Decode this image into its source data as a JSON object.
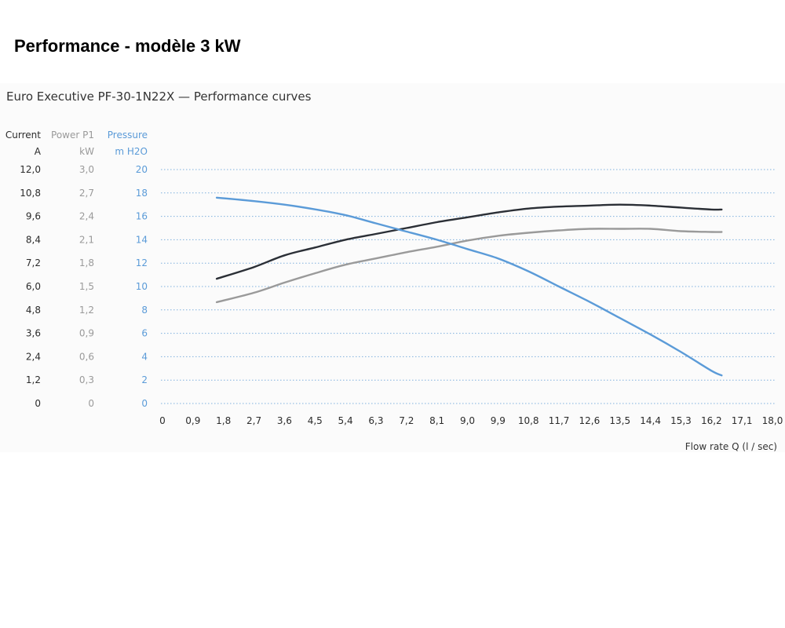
{
  "page": {
    "heading": "Performance - modèle 3 kW"
  },
  "colors": {
    "current": "#2b2f36",
    "power": "#9a9a9a",
    "pressure": "#5b9bd8",
    "grid": "#7fb0dd",
    "axis_text": "#2b2b2b"
  },
  "chart_data": {
    "type": "line",
    "title": "Euro Executive PF-30-1N22X — Performance curves",
    "xlabel": "Flow rate Q  (l / sec)",
    "xlim": [
      0,
      18.0
    ],
    "x_ticks": [
      "0",
      "0,9",
      "1,8",
      "2,7",
      "3,6",
      "4,5",
      "5,4",
      "6,3",
      "7,2",
      "8,1",
      "9,0",
      "9,9",
      "10,8",
      "11,7",
      "12,6",
      "13,5",
      "14,4",
      "15,3",
      "16,2",
      "17,1",
      "18,0"
    ],
    "y_axes": [
      {
        "name": "Current",
        "unit": "A",
        "range": [
          0,
          12.0
        ],
        "ticks": [
          "0",
          "1,2",
          "2,4",
          "3,6",
          "4,8",
          "6,0",
          "7,2",
          "8,4",
          "9,6",
          "10,8",
          "12,0"
        ]
      },
      {
        "name": "Power P1",
        "unit": "kW",
        "range": [
          0,
          3.0
        ],
        "ticks": [
          "0",
          "0,3",
          "0,6",
          "0,9",
          "1,2",
          "1,5",
          "1,8",
          "2,1",
          "2,4",
          "2,7",
          "3,0"
        ]
      },
      {
        "name": "Pressure",
        "unit": "m H2O",
        "range": [
          0,
          20
        ],
        "ticks": [
          "0",
          "2",
          "4",
          "6",
          "8",
          "10",
          "12",
          "14",
          "16",
          "18",
          "20"
        ]
      }
    ],
    "grid": true,
    "series": [
      {
        "key": "current",
        "axis": "Current",
        "x": [
          1.6,
          2.7,
          3.6,
          4.5,
          5.4,
          6.3,
          7.2,
          8.1,
          9.0,
          9.9,
          10.8,
          11.7,
          12.6,
          13.5,
          14.4,
          15.3,
          16.2,
          16.5
        ],
        "y": [
          6.4,
          7.0,
          7.6,
          8.0,
          8.4,
          8.7,
          9.0,
          9.3,
          9.55,
          9.8,
          10.0,
          10.1,
          10.15,
          10.2,
          10.15,
          10.05,
          9.95,
          9.95
        ]
      },
      {
        "key": "power",
        "axis": "Power P1",
        "x": [
          1.6,
          2.7,
          3.6,
          4.5,
          5.4,
          6.3,
          7.2,
          8.1,
          9.0,
          9.9,
          10.8,
          11.7,
          12.6,
          13.5,
          14.4,
          15.3,
          16.2,
          16.5
        ],
        "y": [
          1.3,
          1.42,
          1.55,
          1.67,
          1.78,
          1.86,
          1.94,
          2.01,
          2.09,
          2.15,
          2.19,
          2.22,
          2.24,
          2.24,
          2.24,
          2.21,
          2.2,
          2.2
        ]
      },
      {
        "key": "pressure",
        "axis": "Pressure",
        "x": [
          1.6,
          2.7,
          3.6,
          4.5,
          5.4,
          6.3,
          7.2,
          8.1,
          9.0,
          9.9,
          10.8,
          11.7,
          12.6,
          13.5,
          14.4,
          15.3,
          16.2,
          16.5
        ],
        "y": [
          17.6,
          17.3,
          17.0,
          16.6,
          16.1,
          15.4,
          14.7,
          14.0,
          13.2,
          12.4,
          11.3,
          10.0,
          8.7,
          7.3,
          5.9,
          4.4,
          2.8,
          2.4
        ]
      }
    ]
  }
}
